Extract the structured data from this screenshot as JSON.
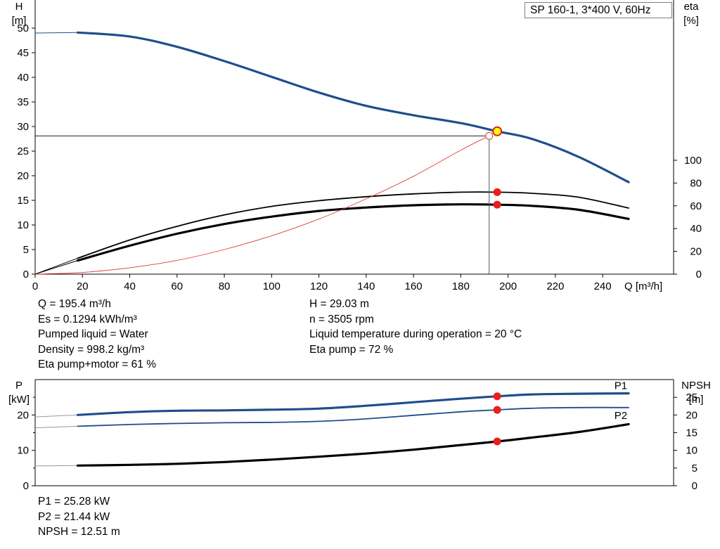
{
  "pump_label": "SP 160-1, 3*400 V, 60Hz",
  "colors": {
    "head": "#1f4e8c",
    "eta": "#000000",
    "power": "#1f4e8c",
    "npsh": "#000000",
    "system": "#e03a3a",
    "dot": "#ee1c1c",
    "duty": "#ffff00"
  },
  "upper_readout_left": [
    "Q = 195.4 m³/h",
    "Es = 0.1294 kWh/m³",
    "Pumped liquid = Water",
    "Density = 998.2 kg/m³",
    "Eta pump+motor = 61 %"
  ],
  "upper_readout_right": [
    "H = 29.03 m",
    "n = 3505 rpm",
    "Liquid temperature during operation = 20 °C",
    "Eta pump = 72 %"
  ],
  "lower_readout": [
    "P1 = 25.28 kW",
    "P2 = 21.44 kW",
    "NPSH = 12.51 m"
  ],
  "chart_data": [
    {
      "type": "line",
      "title": "",
      "xlabel": "Q [m³/h]",
      "ylabel": "H\n[m]",
      "y2label": "eta\n[%]",
      "xlim": [
        0,
        270
      ],
      "ylim": [
        0,
        55
      ],
      "y2lim": [
        0,
        100
      ],
      "x_ticks": [
        0,
        20,
        40,
        60,
        80,
        100,
        120,
        140,
        160,
        180,
        200,
        220,
        240
      ],
      "y_ticks": [
        0,
        5,
        10,
        15,
        20,
        25,
        30,
        35,
        40,
        45,
        50
      ],
      "y2_ticks": [
        0,
        20,
        40,
        60,
        80,
        100
      ],
      "series": [
        {
          "key": "head",
          "axis": "left",
          "width": 3.2,
          "x": [
            0,
            18,
            40,
            60,
            80,
            100,
            120,
            140,
            160,
            180,
            195.4,
            210,
            230,
            251
          ],
          "y": [
            49,
            49.1,
            48.3,
            46.2,
            43.3,
            40.1,
            36.9,
            34.2,
            32.3,
            30.7,
            29.03,
            27.5,
            23.8,
            18.7
          ],
          "lead_in_to": 18
        },
        {
          "key": "eta_pump_curve",
          "axis": "right",
          "width": 1.8,
          "x": [
            0,
            18,
            40,
            60,
            80,
            100,
            120,
            140,
            160,
            180,
            195.4,
            210,
            230,
            251
          ],
          "y": [
            0,
            14,
            30,
            42,
            52,
            59.5,
            64.5,
            68,
            70.5,
            72,
            72,
            71,
            67.5,
            58
          ],
          "lead_in_to": 18
        },
        {
          "key": "eta_total_curve",
          "axis": "right",
          "width": 3.2,
          "x": [
            0,
            18,
            40,
            60,
            80,
            100,
            120,
            140,
            160,
            180,
            195.4,
            210,
            230,
            251
          ],
          "y": [
            0,
            12,
            25,
            35.5,
            44,
            50.5,
            55.5,
            58.5,
            60.5,
            61.3,
            61,
            60,
            56.5,
            48.5
          ],
          "lead_in_to": 18
        },
        {
          "key": "system_curve",
          "axis": "left",
          "width": 0.9,
          "x": [
            0,
            20,
            40,
            60,
            80,
            100,
            120,
            140,
            160,
            180,
            192
          ],
          "y": [
            0,
            0.35,
            1.3,
            2.8,
            5,
            7.8,
            11.2,
            15.3,
            19.9,
            25.2,
            28.1
          ]
        }
      ],
      "duty_point": {
        "q": 195.4,
        "h": 29.03
      },
      "eta_points": [
        72,
        61
      ],
      "system_point": {
        "q": 192,
        "h": 28.1
      }
    },
    {
      "type": "line",
      "title": "",
      "ylabel": "P\n[kW]",
      "y2label": "NPSH\n[m]",
      "xlim": [
        0,
        270
      ],
      "ylim": [
        0,
        30
      ],
      "y2lim": [
        0,
        30
      ],
      "y_ticks": [
        0,
        10,
        20
      ],
      "y2_ticks": [
        0,
        5,
        10,
        15,
        20,
        25
      ],
      "series": [
        {
          "key": "p1_curve",
          "name": "P1",
          "axis": "left",
          "width": 3.2,
          "x": [
            -15,
            18,
            40,
            60,
            80,
            100,
            120,
            140,
            160,
            180,
            195.4,
            210,
            230,
            251
          ],
          "y": [
            19,
            20,
            20.8,
            21.2,
            21.3,
            21.5,
            21.8,
            22.6,
            23.6,
            24.6,
            25.28,
            25.8,
            26,
            26.1
          ],
          "lead_in_to": 18
        },
        {
          "key": "p2_curve",
          "name": "P2",
          "axis": "left",
          "width": 1.8,
          "x": [
            -15,
            18,
            40,
            60,
            80,
            100,
            120,
            140,
            160,
            180,
            195.4,
            210,
            230,
            251
          ],
          "y": [
            16,
            16.8,
            17.3,
            17.6,
            17.8,
            17.9,
            18.2,
            18.9,
            19.9,
            20.9,
            21.44,
            21.9,
            22.1,
            22.1
          ],
          "lead_in_to": 18
        },
        {
          "key": "npsh_curve",
          "axis": "right",
          "width": 3.2,
          "x": [
            -15,
            18,
            40,
            60,
            80,
            100,
            120,
            140,
            160,
            180,
            195.4,
            210,
            230,
            251
          ],
          "y": [
            5.5,
            5.7,
            5.9,
            6.2,
            6.7,
            7.4,
            8.2,
            9.1,
            10.2,
            11.5,
            12.51,
            13.6,
            15.2,
            17.4
          ],
          "lead_in_to": 18
        }
      ],
      "duty_points": [
        25.28,
        21.44,
        12.51
      ]
    }
  ]
}
